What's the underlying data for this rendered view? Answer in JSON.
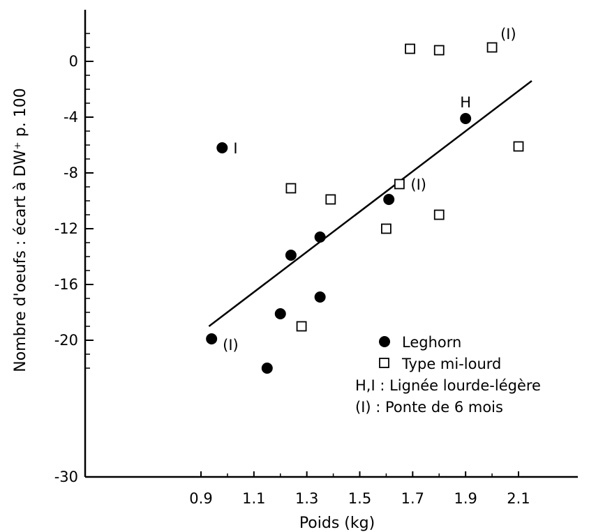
{
  "chart_data": {
    "type": "scatter",
    "title": "",
    "xlabel": "Poids (kg)",
    "ylabel": "Nombre d'oeufs : écart à DW⁺ p. 100",
    "xlim": [
      0.9,
      2.1
    ],
    "ylim": [
      -30,
      0
    ],
    "x_ticks": [
      {
        "value": 0.9,
        "label": "0.9"
      },
      {
        "value": 1.1,
        "label": "1.1"
      },
      {
        "value": 1.3,
        "label": "1.3"
      },
      {
        "value": 1.5,
        "label": "1.5"
      },
      {
        "value": 1.7,
        "label": "1.7"
      },
      {
        "value": 1.9,
        "label": "1.9"
      },
      {
        "value": 2.1,
        "label": "2.1"
      }
    ],
    "y_ticks": [
      {
        "value": 0,
        "label": "0"
      },
      {
        "value": -4,
        "label": "-4"
      },
      {
        "value": -8,
        "label": "-8"
      },
      {
        "value": -12,
        "label": "-12"
      },
      {
        "value": -16,
        "label": "-16"
      },
      {
        "value": -20,
        "label": "-20"
      },
      {
        "value": -30,
        "label": "-30"
      }
    ],
    "series": [
      {
        "name": "Leghorn",
        "marker": "filled-circle",
        "points": [
          {
            "x": 0.98,
            "y": -6.2,
            "label": "I"
          },
          {
            "x": 0.94,
            "y": -19.9,
            "label": "(I)"
          },
          {
            "x": 1.15,
            "y": -22.0,
            "label": ""
          },
          {
            "x": 1.2,
            "y": -18.1,
            "label": ""
          },
          {
            "x": 1.24,
            "y": -13.9,
            "label": ""
          },
          {
            "x": 1.35,
            "y": -12.6,
            "label": ""
          },
          {
            "x": 1.35,
            "y": -16.9,
            "label": ""
          },
          {
            "x": 1.61,
            "y": -9.9,
            "label": ""
          },
          {
            "x": 1.9,
            "y": -4.1,
            "label": "H"
          }
        ]
      },
      {
        "name": "Type mi-lourd",
        "marker": "open-square",
        "points": [
          {
            "x": 1.24,
            "y": -9.1,
            "label": ""
          },
          {
            "x": 1.28,
            "y": -19.0,
            "label": ""
          },
          {
            "x": 1.39,
            "y": -9.9,
            "label": ""
          },
          {
            "x": 1.6,
            "y": -12.0,
            "label": ""
          },
          {
            "x": 1.65,
            "y": -8.8,
            "label": "(I)"
          },
          {
            "x": 1.69,
            "y": 0.9,
            "label": ""
          },
          {
            "x": 1.8,
            "y": 0.8,
            "label": ""
          },
          {
            "x": 1.8,
            "y": -11.0,
            "label": ""
          },
          {
            "x": 2.0,
            "y": 1.0,
            "label": "(I)"
          },
          {
            "x": 2.1,
            "y": -6.1,
            "label": ""
          }
        ]
      }
    ],
    "regression_line": {
      "x1": 0.93,
      "y1": -19.0,
      "x2": 2.15,
      "y2": -1.4
    },
    "legend": {
      "placement": "bottom-right",
      "entries": [
        {
          "marker": "filled-circle",
          "label": "Leghorn"
        },
        {
          "marker": "open-square",
          "label": "Type mi-lourd"
        },
        {
          "marker": "text",
          "label": "H,I : Lignée lourde-légère"
        },
        {
          "marker": "text",
          "label": "(I) : Ponte de 6 mois"
        }
      ]
    },
    "grid": false
  }
}
